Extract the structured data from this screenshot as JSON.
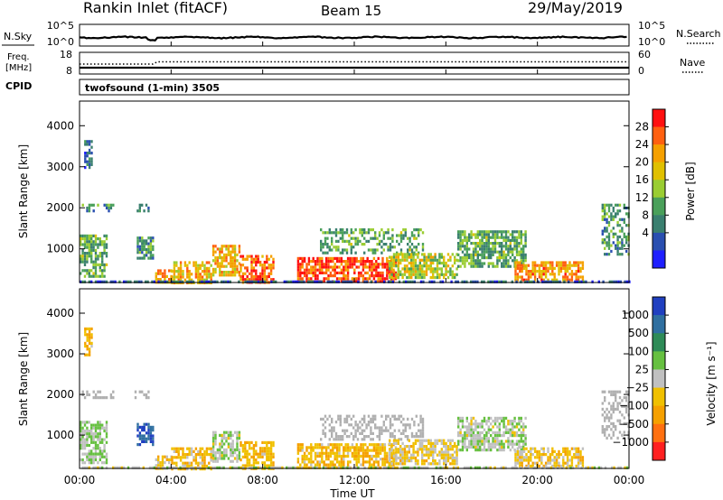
{
  "header": {
    "title": "Rankin Inlet (fitACF)",
    "beam": "Beam 15",
    "date": "29/May/2019"
  },
  "noise_panel": {
    "left_label": "N.Sky",
    "right_label": "N.Search",
    "left_ticks": [
      "10^5",
      "10^0"
    ],
    "right_ticks": [
      "10^5",
      "10^0"
    ],
    "legend_line": "dotted"
  },
  "freq_panel": {
    "left_label_1": "Freq.",
    "left_label_2": "[MHz]",
    "right_label": "Nave",
    "left_ticks": [
      "18",
      "8"
    ],
    "right_ticks": [
      "60",
      "0"
    ],
    "cpid_label": "CPID",
    "cpid_value": "twofsound (1-min) 3505"
  },
  "power_panel": {
    "ylabel": "Slant Range [km]",
    "yticks": [
      "4000",
      "3000",
      "2000",
      "1000"
    ],
    "colorbar_title": "Power [dB]",
    "colorbar_ticks": [
      "28",
      "24",
      "20",
      "16",
      "12",
      "8",
      "4"
    ],
    "colors": [
      "#1f1fff",
      "#2a4fb0",
      "#3a7f6f",
      "#4aa05a",
      "#9acd32",
      "#e0c000",
      "#f5a000",
      "#ff6010",
      "#ff1010"
    ]
  },
  "velocity_panel": {
    "ylabel": "Slant Range [km]",
    "yticks": [
      "4000",
      "3000",
      "2000",
      "1000"
    ],
    "colorbar_title": "Velocity [m s⁻¹]",
    "colorbar_ticks": [
      "1000",
      "500",
      "100",
      "25",
      "−25",
      "−100",
      "−500",
      "−1000"
    ],
    "colors": [
      "#2040c0",
      "#2f6fa0",
      "#2e8b57",
      "#66c040",
      "#c0c0c0",
      "#f0c000",
      "#f5a000",
      "#ff7010",
      "#ff2020"
    ],
    "ground_scatter_color": "#b0b0b0"
  },
  "xaxis": {
    "label": "Time UT",
    "ticks": [
      "00:00",
      "04:00",
      "08:00",
      "12:00",
      "16:00",
      "20:00",
      "00:00"
    ]
  },
  "chart_data": {
    "type": "heatmap",
    "title": "Rankin Inlet (fitACF)",
    "subtitle": "Beam 15",
    "date": "29/May/2019",
    "x_range_hours_ut": [
      0,
      24
    ],
    "y_range_km": [
      180,
      4600
    ],
    "xlabel": "Time UT",
    "ylabel": "Slant Range [km]",
    "power_range_db": [
      0,
      30
    ],
    "velocity_range_ms": [
      -1000,
      1000
    ],
    "scatter_regions": [
      {
        "t0": 0.0,
        "t1": 1.2,
        "r0": 300,
        "r1": 1350,
        "power": 12,
        "vel": 100
      },
      {
        "t0": 0.1,
        "t1": 1.5,
        "r0": 1950,
        "r1": 2100,
        "power": 10,
        "vel": 0,
        "ground": true
      },
      {
        "t0": 0.2,
        "t1": 0.5,
        "r0": 2950,
        "r1": 3650,
        "power": 8,
        "vel": -300
      },
      {
        "t0": 2.4,
        "t1": 3.0,
        "r0": 1950,
        "r1": 2100,
        "power": 8,
        "vel": 0,
        "ground": true
      },
      {
        "t0": 2.5,
        "t1": 3.2,
        "r0": 800,
        "r1": 1300,
        "power": 10,
        "vel": 800
      },
      {
        "t0": 3.3,
        "t1": 4.0,
        "r0": 180,
        "r1": 500,
        "power": 22,
        "vel": -200
      },
      {
        "t0": 4.0,
        "t1": 5.8,
        "r0": 180,
        "r1": 700,
        "power": 20,
        "vel": -250
      },
      {
        "t0": 5.8,
        "t1": 7.0,
        "r0": 350,
        "r1": 1100,
        "power": 20,
        "vel": 50
      },
      {
        "t0": 7.0,
        "t1": 8.5,
        "r0": 180,
        "r1": 850,
        "power": 24,
        "vel": -300
      },
      {
        "t0": 9.5,
        "t1": 13.8,
        "r0": 180,
        "r1": 800,
        "power": 26,
        "vel": -280
      },
      {
        "t0": 10.5,
        "t1": 15.0,
        "r0": 900,
        "r1": 1500,
        "power": 12,
        "vel": 20,
        "ground": true
      },
      {
        "t0": 13.5,
        "t1": 16.5,
        "r0": 300,
        "r1": 900,
        "power": 16,
        "vel": -150
      },
      {
        "t0": 16.5,
        "t1": 19.5,
        "r0": 600,
        "r1": 1450,
        "power": 12,
        "vel": 60
      },
      {
        "t0": 19.0,
        "t1": 22.0,
        "r0": 250,
        "r1": 700,
        "power": 22,
        "vel": -200
      },
      {
        "t0": 22.8,
        "t1": 24.0,
        "r0": 900,
        "r1": 2100,
        "power": 10,
        "vel": 0,
        "ground": true
      },
      {
        "t0": 0.0,
        "t1": 24.0,
        "r0": 180,
        "r1": 230,
        "power": 6,
        "vel": 0
      }
    ]
  }
}
